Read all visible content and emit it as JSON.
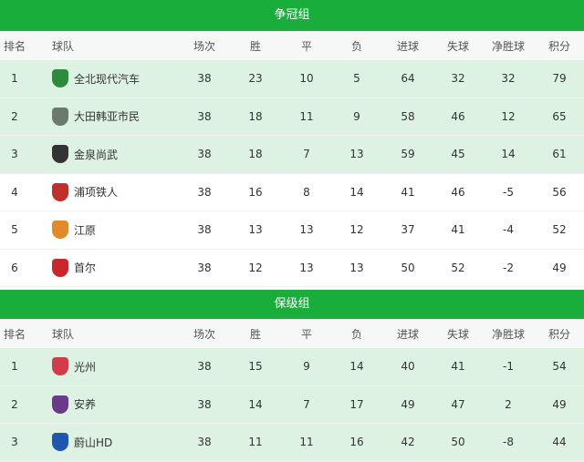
{
  "headers": [
    "排名",
    "球队",
    "场次",
    "胜",
    "平",
    "负",
    "进球",
    "失球",
    "净胜球",
    "积分"
  ],
  "sections": [
    {
      "title": "争冠组",
      "rows": [
        {
          "rank": "1",
          "team": "全北现代汽车",
          "icon": "jeonbuk-logo-icon",
          "color": "#2e8b3e",
          "played": "38",
          "w": "23",
          "d": "10",
          "l": "5",
          "gf": "64",
          "ga": "32",
          "gd": "32",
          "pts": "79"
        },
        {
          "rank": "2",
          "team": "大田韩亚市民",
          "icon": "daejeon-logo-icon",
          "color": "#6b7a6b",
          "played": "38",
          "w": "18",
          "d": "11",
          "l": "9",
          "gf": "58",
          "ga": "46",
          "gd": "12",
          "pts": "65"
        },
        {
          "rank": "3",
          "team": "金泉尚武",
          "icon": "gimcheon-logo-icon",
          "color": "#333333",
          "played": "38",
          "w": "18",
          "d": "7",
          "l": "13",
          "gf": "59",
          "ga": "45",
          "gd": "14",
          "pts": "61"
        },
        {
          "rank": "4",
          "team": "浦项铁人",
          "icon": "pohang-logo-icon",
          "color": "#c0302a",
          "played": "38",
          "w": "16",
          "d": "8",
          "l": "14",
          "gf": "41",
          "ga": "46",
          "gd": "-5",
          "pts": "56"
        },
        {
          "rank": "5",
          "team": "江原",
          "icon": "gangwon-logo-icon",
          "color": "#e08a2a",
          "played": "38",
          "w": "13",
          "d": "13",
          "l": "12",
          "gf": "37",
          "ga": "41",
          "gd": "-4",
          "pts": "52"
        },
        {
          "rank": "6",
          "team": "首尔",
          "icon": "seoul-logo-icon",
          "color": "#c8282c",
          "played": "38",
          "w": "12",
          "d": "13",
          "l": "13",
          "gf": "50",
          "ga": "52",
          "gd": "-2",
          "pts": "49"
        }
      ]
    },
    {
      "title": "保级组",
      "rows": [
        {
          "rank": "1",
          "team": "光州",
          "icon": "gwangju-logo-icon",
          "color": "#d23b4a",
          "played": "38",
          "w": "15",
          "d": "9",
          "l": "14",
          "gf": "40",
          "ga": "41",
          "gd": "-1",
          "pts": "54"
        },
        {
          "rank": "2",
          "team": "安养",
          "icon": "anyang-logo-icon",
          "color": "#6a3a8a",
          "played": "38",
          "w": "14",
          "d": "7",
          "l": "17",
          "gf": "49",
          "ga": "47",
          "gd": "2",
          "pts": "49"
        },
        {
          "rank": "3",
          "team": "蔚山HD",
          "icon": "ulsan-logo-icon",
          "color": "#1f56b0",
          "played": "38",
          "w": "11",
          "d": "11",
          "l": "16",
          "gf": "42",
          "ga": "50",
          "gd": "-8",
          "pts": "44"
        }
      ]
    }
  ],
  "colors": {
    "banner": "#19ae3b",
    "highlight_row": "#ddf2e2"
  }
}
